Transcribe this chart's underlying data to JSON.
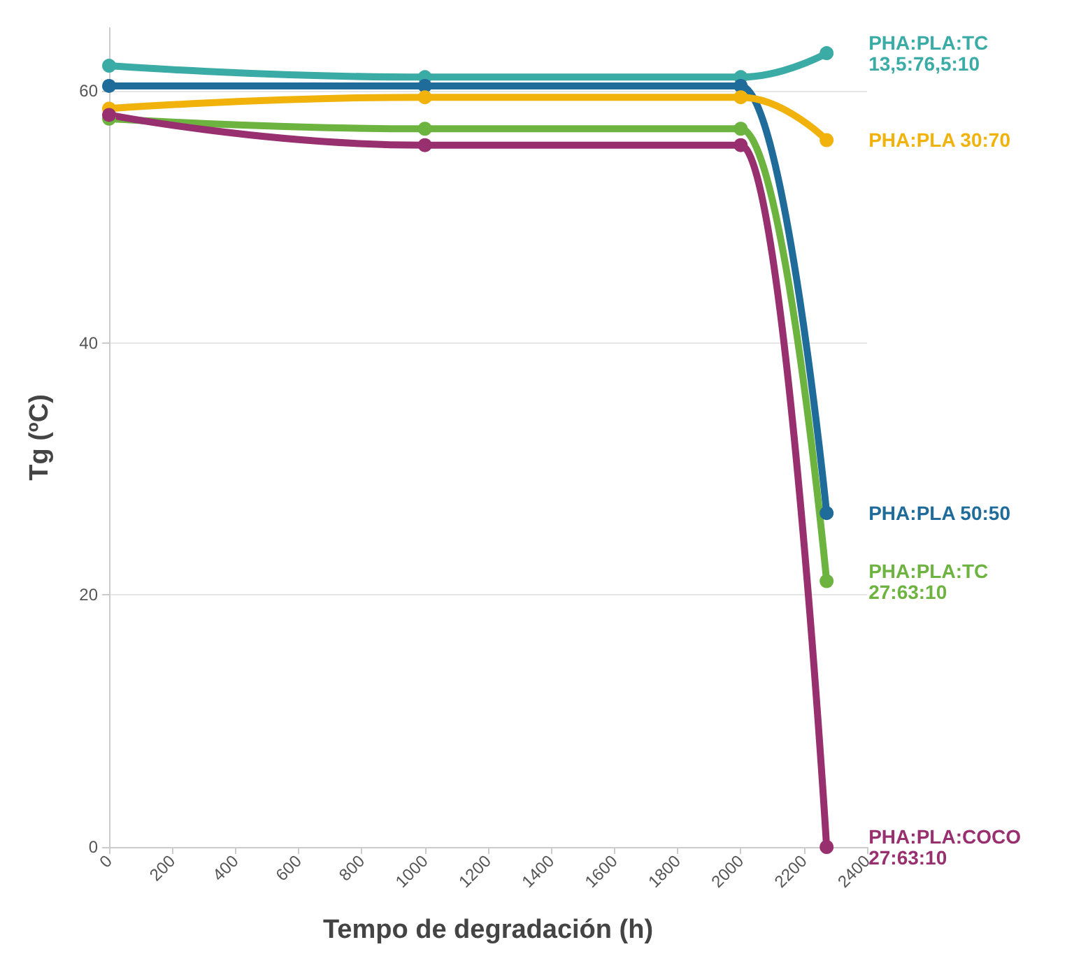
{
  "chart_data": {
    "type": "line",
    "xlabel": "Tempo de degradación (h)",
    "ylabel": "Tg (ºC)",
    "x": [
      0,
      1000,
      2000,
      2272
    ],
    "series": [
      {
        "name": "PHA:PLA:TC\n13,5:76,5:10",
        "color": "#3aaba5",
        "values": [
          62,
          61.1,
          61.1,
          63
        ]
      },
      {
        "name": "PHA:PLA 50:50",
        "color": "#1f6b9a",
        "values": [
          60.4,
          60.4,
          60.4,
          26.5
        ]
      },
      {
        "name": "PHA:PLA 30:70",
        "color": "#f1b30b",
        "values": [
          58.6,
          59.5,
          59.5,
          56.1
        ]
      },
      {
        "name": "PHA:PLA:TC\n27:63:10",
        "color": "#6db33f",
        "values": [
          57.8,
          57,
          57,
          21.1
        ]
      },
      {
        "name": "PHA:PLA:COCO\n27:63:10",
        "color": "#982f6e",
        "values": [
          58.1,
          55.7,
          55.7,
          0
        ]
      }
    ],
    "xlim": [
      0,
      2400
    ],
    "xticks": [
      0,
      200,
      400,
      600,
      800,
      1000,
      1200,
      1400,
      1600,
      1800,
      2000,
      2200,
      2400
    ],
    "ylim": [
      0,
      65
    ],
    "yticks": [
      0,
      20,
      40,
      60
    ],
    "grid": "y",
    "legend": false,
    "marker": "circle",
    "line_style": "solid"
  }
}
